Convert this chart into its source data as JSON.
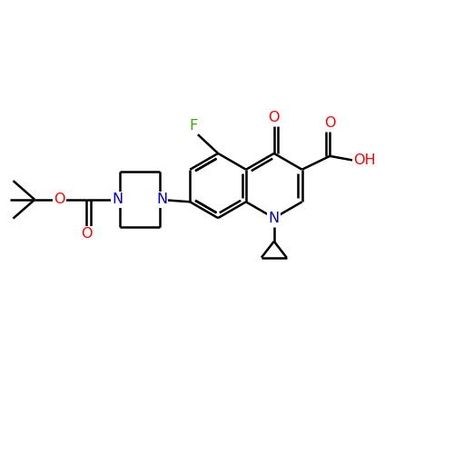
{
  "bg_color": "#ffffff",
  "bond_color": "#000000",
  "bond_width": 1.8,
  "atom_colors": {
    "N": "#0000cc",
    "O": "#ff0000",
    "F": "#33aa00",
    "C": "#000000"
  },
  "font_size": 11.5
}
